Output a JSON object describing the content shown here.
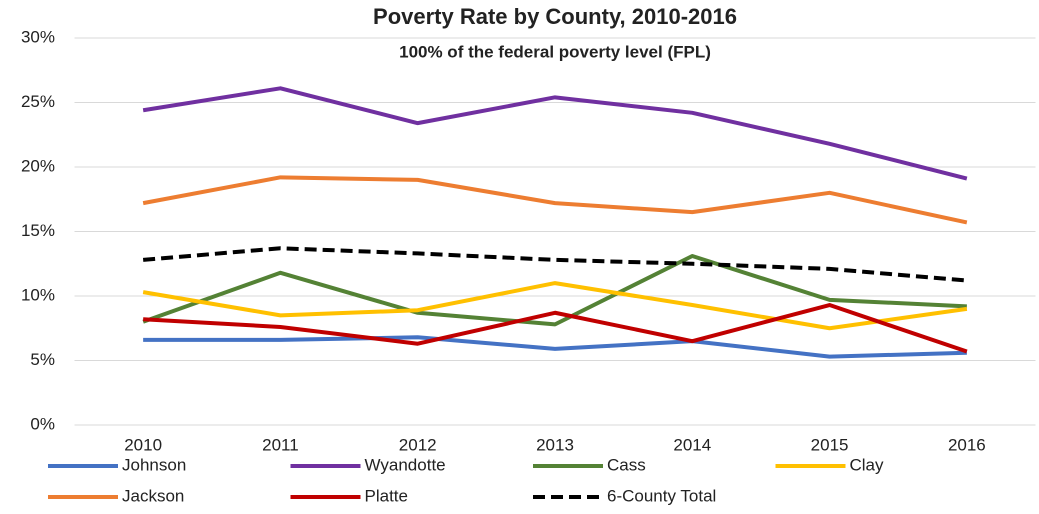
{
  "chart_data": {
    "type": "line",
    "title": "Poverty Rate by County, 2010-2016",
    "subtitle": "100% of the federal poverty level (FPL)",
    "categories": [
      "2010",
      "2011",
      "2012",
      "2013",
      "2014",
      "2015",
      "2016"
    ],
    "series": [
      {
        "name": "Johnson",
        "color": "#4472c4",
        "values": [
          6.6,
          6.6,
          6.8,
          5.9,
          6.5,
          5.3,
          5.6
        ]
      },
      {
        "name": "Wyandotte",
        "color": "#7030a0",
        "values": [
          24.4,
          26.1,
          23.4,
          25.4,
          24.2,
          21.8,
          19.1
        ]
      },
      {
        "name": "Cass",
        "color": "#548235",
        "values": [
          8.0,
          11.8,
          8.7,
          7.8,
          13.1,
          9.7,
          9.2
        ]
      },
      {
        "name": "Clay",
        "color": "#ffc000",
        "values": [
          10.3,
          8.5,
          8.9,
          11.0,
          9.3,
          7.5,
          9.0
        ]
      },
      {
        "name": "Jackson",
        "color": "#ed7d31",
        "values": [
          17.2,
          19.2,
          19.0,
          17.2,
          16.5,
          18.0,
          15.7
        ]
      },
      {
        "name": "Platte",
        "color": "#c00000",
        "values": [
          8.2,
          7.6,
          6.3,
          8.7,
          6.5,
          9.3,
          5.7
        ]
      },
      {
        "name": "6-County Total",
        "color": "#000000",
        "dashed": true,
        "values": [
          12.8,
          13.7,
          13.3,
          12.8,
          12.5,
          12.1,
          11.2
        ]
      }
    ],
    "ylim": [
      0,
      30
    ],
    "yticks": [
      {
        "value": 0,
        "label": "0%"
      },
      {
        "value": 5,
        "label": "5%"
      },
      {
        "value": 10,
        "label": "10%"
      },
      {
        "value": 15,
        "label": "15%"
      },
      {
        "value": 20,
        "label": "20%"
      },
      {
        "value": 25,
        "label": "25%"
      },
      {
        "value": 30,
        "label": "30%"
      }
    ],
    "grid": true,
    "legend": "bottom"
  }
}
